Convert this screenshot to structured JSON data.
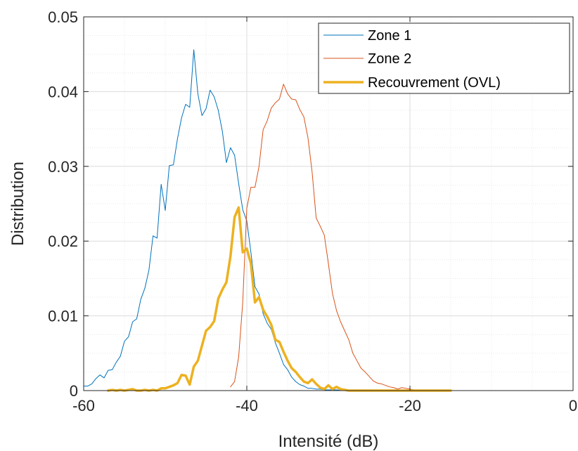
{
  "chart_data": {
    "type": "line",
    "title": "",
    "xlabel": "Intensité (dB)",
    "ylabel": "Distribution",
    "xlim": [
      -60,
      0
    ],
    "ylim": [
      0,
      0.05
    ],
    "x_ticks": [
      -60,
      -40,
      -20,
      0
    ],
    "x_tick_labels": [
      "-60",
      "-40",
      "-20",
      "0"
    ],
    "y_ticks": [
      0,
      0.01,
      0.02,
      0.03,
      0.04,
      0.05
    ],
    "y_tick_labels": [
      "0",
      "0.01",
      "0.02",
      "0.03",
      "0.04",
      "0.05"
    ],
    "grid": true,
    "minor_grid": true,
    "legend_position": "top-right",
    "series": [
      {
        "name": "Zone 1",
        "color": "#0072BD",
        "line_width": 1,
        "x": [
          -60,
          -59.5,
          -59,
          -58.5,
          -58,
          -57.5,
          -57,
          -56.5,
          -56,
          -55.5,
          -55,
          -54.5,
          -54,
          -53.5,
          -53,
          -52.5,
          -52,
          -51.5,
          -51,
          -50.5,
          -50,
          -49.5,
          -49,
          -48.5,
          -48,
          -47.5,
          -47,
          -46.5,
          -46,
          -45.5,
          -45,
          -44.5,
          -44,
          -43.5,
          -43,
          -42.5,
          -42,
          -41.5,
          -41,
          -40.5,
          -40,
          -39.5,
          -39,
          -38.5,
          -38,
          -37.5,
          -37,
          -36.5,
          -36,
          -35.5,
          -35,
          -34.5,
          -34,
          -33.5,
          -33,
          -32.5,
          -32,
          -31.5,
          -31,
          -30.5,
          -30,
          -29,
          -28,
          -27,
          -26,
          -25
        ],
        "y": [
          0.0006,
          0.0006,
          0.0009,
          0.0016,
          0.0021,
          0.0017,
          0.0027,
          0.0028,
          0.0038,
          0.0046,
          0.0066,
          0.0072,
          0.0092,
          0.0096,
          0.0122,
          0.0137,
          0.0161,
          0.0207,
          0.0204,
          0.0276,
          0.0241,
          0.0301,
          0.0302,
          0.0337,
          0.0365,
          0.0383,
          0.0379,
          0.0456,
          0.0397,
          0.0368,
          0.0377,
          0.0402,
          0.0393,
          0.0375,
          0.0347,
          0.0305,
          0.0325,
          0.0315,
          0.0277,
          0.0242,
          0.0227,
          0.0185,
          0.0139,
          0.0129,
          0.0103,
          0.009,
          0.0082,
          0.0064,
          0.005,
          0.0035,
          0.0028,
          0.0018,
          0.0012,
          0.0008,
          0.0006,
          0.0003,
          0.0003,
          0.0002,
          0.0002,
          0.0001,
          0.0001,
          0.0001,
          0,
          0,
          0,
          0
        ]
      },
      {
        "name": "Zone 2",
        "color": "#D95319",
        "line_width": 1,
        "x": [
          -42,
          -41.5,
          -41,
          -40.5,
          -40,
          -39.5,
          -39,
          -38.5,
          -38,
          -37.5,
          -37,
          -36.5,
          -36,
          -35.5,
          -35,
          -34.5,
          -34,
          -33.5,
          -33,
          -32.5,
          -32,
          -31.5,
          -31,
          -30.5,
          -30,
          -29.5,
          -29,
          -28.5,
          -28,
          -27.5,
          -27,
          -26.5,
          -26,
          -25.5,
          -25,
          -24.5,
          -24,
          -23.5,
          -23,
          -22.5,
          -22,
          -21.5,
          -21,
          -20.5,
          -20,
          -19.5,
          -19,
          -18.5,
          -18,
          -17.5,
          -17,
          -16.5,
          -16,
          -15.5,
          -15,
          -14,
          -12,
          -10,
          -8,
          -6,
          -4,
          -2,
          0
        ],
        "y": [
          0.0005,
          0.0012,
          0.0045,
          0.0118,
          0.0244,
          0.0272,
          0.0272,
          0.03,
          0.0349,
          0.0361,
          0.0378,
          0.0385,
          0.039,
          0.041,
          0.0397,
          0.039,
          0.0389,
          0.0376,
          0.0366,
          0.0338,
          0.0293,
          0.0231,
          0.022,
          0.0208,
          0.017,
          0.013,
          0.0107,
          0.0092,
          0.008,
          0.0068,
          0.005,
          0.004,
          0.003,
          0.0025,
          0.0019,
          0.0013,
          0.001,
          0.0009,
          0.0007,
          0.0005,
          0.0004,
          0.0002,
          0.0004,
          0.0003,
          0.0002,
          0.0001,
          0.0001,
          0.0001,
          0.0001,
          0.0001,
          0,
          0,
          0,
          0,
          0,
          0,
          0,
          0,
          0,
          0,
          0,
          0,
          0
        ]
      },
      {
        "name": "Recouvrement (OVL)",
        "color": "#EDB120",
        "line_width": 3.5,
        "x": [
          -57,
          -56.5,
          -56,
          -55.5,
          -55,
          -54.5,
          -54,
          -53.5,
          -53,
          -52.5,
          -52,
          -51.5,
          -51,
          -50.5,
          -50,
          -49.5,
          -49,
          -48.5,
          -48,
          -47.5,
          -47,
          -46.5,
          -46,
          -45.5,
          -45,
          -44.5,
          -44,
          -43.5,
          -43,
          -42.5,
          -42,
          -41.5,
          -41,
          -40.5,
          -40,
          -39.5,
          -39,
          -38.5,
          -38,
          -37.5,
          -37,
          -36.5,
          -36,
          -35.5,
          -35,
          -34.5,
          -34,
          -33.5,
          -33,
          -32.5,
          -32,
          -31.5,
          -31,
          -30.5,
          -30,
          -29.5,
          -29,
          -28.5,
          -28,
          -27.5,
          -27,
          -26,
          -24,
          -22,
          -20,
          -18,
          -16,
          -15
        ],
        "y": [
          0,
          0.0001,
          0,
          0.0001,
          0,
          0.0001,
          0.0002,
          0,
          0,
          0.0001,
          0,
          0.0001,
          0,
          0.0003,
          0.0003,
          0.0005,
          0.0007,
          0.001,
          0.0021,
          0.002,
          0.0008,
          0.0032,
          0.004,
          0.006,
          0.008,
          0.0085,
          0.0093,
          0.0123,
          0.0135,
          0.0145,
          0.018,
          0.0232,
          0.0245,
          0.0185,
          0.019,
          0.017,
          0.0118,
          0.0125,
          0.0108,
          0.0099,
          0.0088,
          0.0068,
          0.0065,
          0.0052,
          0.004,
          0.003,
          0.0025,
          0.0018,
          0.0012,
          0.001,
          0.0015,
          0.0009,
          0.0004,
          0.0002,
          0.0007,
          0.0002,
          0.0005,
          0.0002,
          0.0001,
          0,
          0,
          0,
          0,
          0,
          0,
          0,
          0,
          0
        ]
      }
    ]
  }
}
